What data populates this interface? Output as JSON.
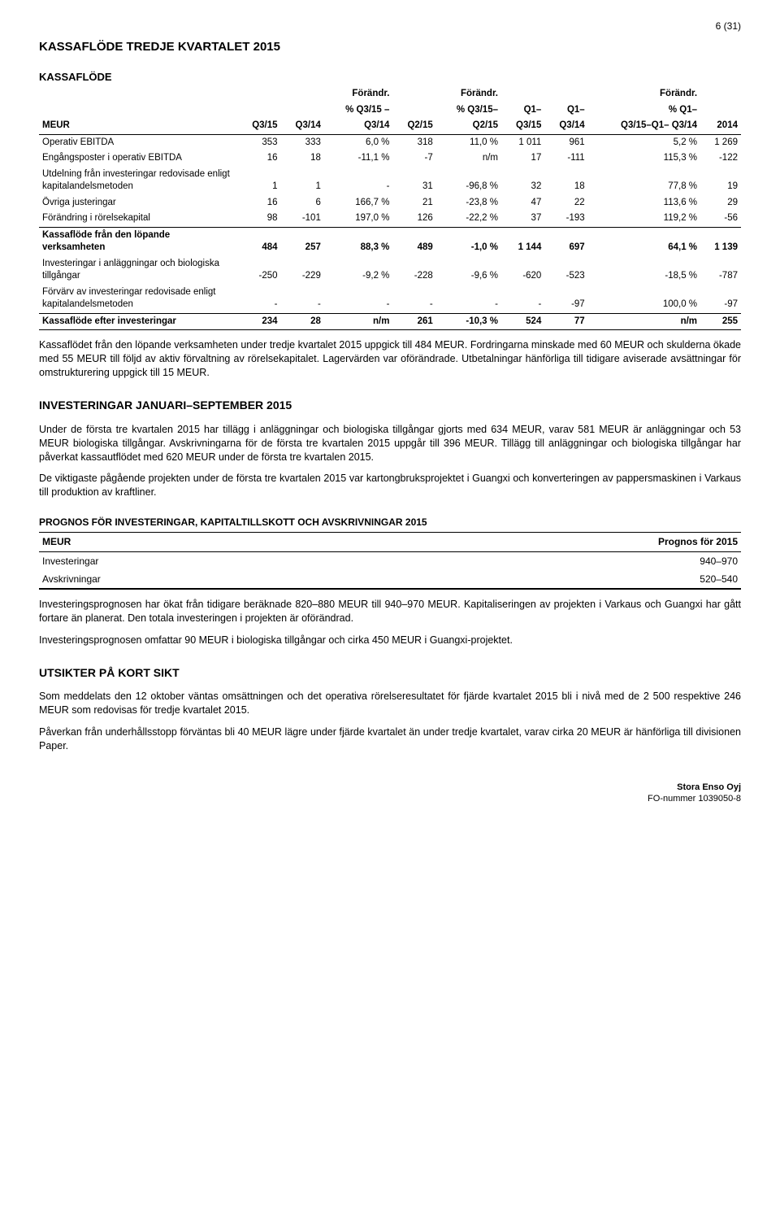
{
  "page_number": "6 (31)",
  "title": "KASSAFLÖDE TREDJE KVARTALET 2015",
  "subtitle": "KASSAFLÖDE",
  "table1": {
    "corner": "MEUR",
    "header_top": [
      "",
      "",
      "Förändr.",
      "",
      "Förändr.",
      "",
      "",
      "Förändr.",
      ""
    ],
    "header_mid": [
      "",
      "",
      "% Q3/15 –",
      "",
      "% Q3/15–",
      "Q1–",
      "Q1–",
      "% Q1–",
      ""
    ],
    "header_bot": [
      "Q3/15",
      "Q3/14",
      "Q3/14",
      "Q2/15",
      "Q2/15",
      "Q3/15",
      "Q3/14",
      "Q3/15–Q1–  Q3/14",
      "2014"
    ],
    "rows": [
      {
        "label": "Operativ EBITDA",
        "c": [
          "353",
          "333",
          "6,0 %",
          "318",
          "11,0 %",
          "1 011",
          "961",
          "5,2 %",
          "1 269"
        ]
      },
      {
        "label": "Engångsposter i operativ EBITDA",
        "c": [
          "16",
          "18",
          "-11,1 %",
          "-7",
          "n/m",
          "17",
          "-111",
          "115,3 %",
          "-122"
        ]
      },
      {
        "label": "Utdelning från investeringar redovisade enligt kapitalandelsmetoden",
        "c": [
          "1",
          "1",
          "-",
          "31",
          "-96,8 %",
          "32",
          "18",
          "77,8 %",
          "19"
        ]
      },
      {
        "label": "Övriga justeringar",
        "c": [
          "16",
          "6",
          "166,7 %",
          "21",
          "-23,8 %",
          "47",
          "22",
          "113,6 %",
          "29"
        ]
      },
      {
        "label": "Förändring i rörelsekapital",
        "c": [
          "98",
          "-101",
          "197,0 %",
          "126",
          "-22,2 %",
          "37",
          "-193",
          "119,2 %",
          "-56"
        ],
        "underline": true
      },
      {
        "label": "Kassaflöde från den löpande verksamheten",
        "c": [
          "484",
          "257",
          "88,3 %",
          "489",
          "-1,0 %",
          "1 144",
          "697",
          "64,1 %",
          "1 139"
        ],
        "bold": true
      },
      {
        "label": "Investeringar i anläggningar och biologiska tillgångar",
        "c": [
          "-250",
          "-229",
          "-9,2 %",
          "-228",
          "-9,6 %",
          "-620",
          "-523",
          "-18,5 %",
          "-787"
        ]
      },
      {
        "label": "Förvärv av investeringar redovisade enligt kapitalandelsmetoden",
        "c": [
          "-",
          "-",
          "-",
          "-",
          "-",
          "-",
          "-97",
          "100,0 %",
          "-97"
        ],
        "underline": true
      },
      {
        "label": "Kassaflöde efter investeringar",
        "c": [
          "234",
          "28",
          "n/m",
          "261",
          "-10,3 %",
          "524",
          "77",
          "n/m",
          "255"
        ],
        "bold": true,
        "underline": true
      }
    ]
  },
  "para1": "Kassaflödet från den löpande verksamheten under tredje kvartalet 2015 uppgick till 484 MEUR. Fordringarna minskade med 60 MEUR och skulderna ökade med 55 MEUR till följd av aktiv förvaltning av rörelsekapitalet. Lagervärden var oförändrade. Utbetalningar hänförliga till tidigare aviserade avsättningar för omstrukturering uppgick till 15 MEUR.",
  "section2": "INVESTERINGAR JANUARI–SEPTEMBER 2015",
  "para2": "Under de första tre kvartalen 2015 har tillägg i anläggningar och biologiska tillgångar gjorts med 634 MEUR, varav 581 MEUR är anläggningar och 53 MEUR biologiska tillgångar. Avskrivningarna för de första tre kvartalen 2015 uppgår till 396 MEUR. Tillägg till anläggningar och biologiska tillgångar har påverkat kassautflödet med 620 MEUR under de första tre kvartalen 2015.",
  "para3": "De viktigaste pågående projekten under de första tre kvartalen 2015 var kartongbruksprojektet i Guangxi och konverteringen av pappersmaskinen i Varkaus till produktion av kraftliner.",
  "section3": "PROGNOS FÖR INVESTERINGAR, KAPITALTILLSKOTT OCH AVSKRIVNINGAR 2015",
  "table2": {
    "col1": "MEUR",
    "col2": "Prognos för 2015",
    "rows": [
      {
        "label": "Investeringar",
        "val": "940–970"
      },
      {
        "label": "Avskrivningar",
        "val": "520–540"
      }
    ]
  },
  "para4": "Investeringsprognosen har ökat från tidigare beräknade 820–880 MEUR till 940–970 MEUR. Kapitaliseringen av projekten i Varkaus och Guangxi har gått fortare än planerat. Den totala investeringen i projekten är oförändrad.",
  "para5": "Investeringsprognosen omfattar 90 MEUR i biologiska tillgångar och cirka 450 MEUR i Guangxi-projektet.",
  "section4": "UTSIKTER PÅ KORT SIKT",
  "para6": "Som meddelats den 12 oktober väntas omsättningen och det operativa rörelseresultatet för fjärde kvartalet 2015 bli i nivå med de 2 500 respektive 246 MEUR som redovisas för tredje kvartalet 2015.",
  "para7": "Påverkan från underhållsstopp förväntas bli 40 MEUR lägre under fjärde kvartalet än under tredje kvartalet, varav cirka 20 MEUR är hänförliga till divisionen Paper.",
  "footer1": "Stora Enso Oyj",
  "footer2": "FO-nummer 1039050-8"
}
